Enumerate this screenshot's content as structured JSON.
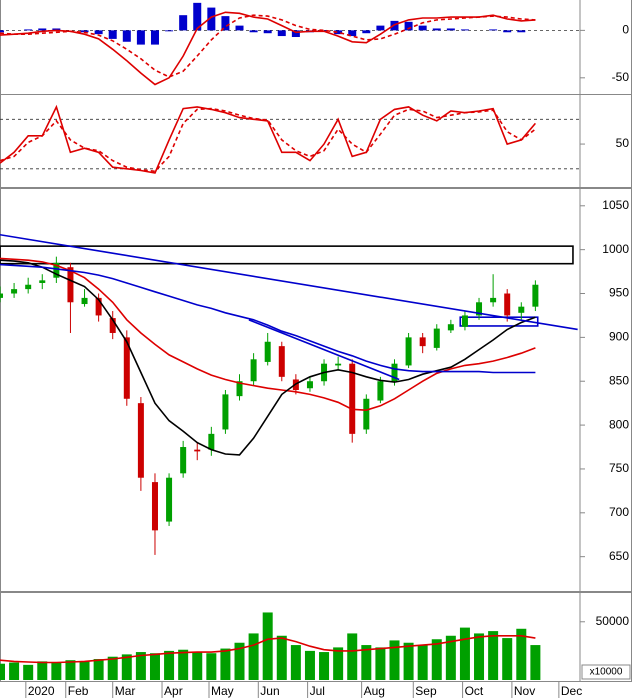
{
  "chart_data": [
    {
      "type": "macd",
      "x": [
        0,
        6,
        12,
        18,
        24,
        30,
        36,
        42,
        48,
        54,
        60,
        66,
        72,
        78,
        84,
        90,
        96,
        102,
        108,
        114,
        120,
        126,
        132,
        138,
        144,
        150,
        156,
        162,
        168,
        174,
        180,
        186,
        192,
        198,
        204,
        210,
        216,
        222,
        228
      ],
      "xlim": [
        0,
        247
      ],
      "ylim": [
        -66,
        32
      ],
      "yticks": [
        0,
        -50
      ],
      "levels": [
        0
      ],
      "histogram": {
        "color": "#0000cc",
        "values": [
          -2,
          0,
          1,
          2,
          2,
          0,
          -2,
          -4,
          -9,
          -12,
          -15,
          -15,
          -1,
          16,
          29,
          24,
          15,
          5,
          -2,
          -3,
          -6,
          -7,
          -2,
          -1,
          -4,
          -6,
          -3,
          5,
          10,
          9,
          5,
          2,
          2,
          1,
          0,
          1,
          -2,
          -2,
          0
        ]
      },
      "series": [
        {
          "color": "#dd0000",
          "dashed": false,
          "values": [
            -5,
            -4,
            -3,
            -1,
            0,
            -1,
            -4,
            -9,
            -20,
            -32,
            -45,
            -57,
            -50,
            -27,
            2,
            14,
            19,
            18,
            14,
            12,
            5,
            -2,
            -1,
            -1,
            -6,
            -12,
            -13,
            -4,
            6,
            11,
            13,
            13,
            14,
            14,
            14,
            16,
            12,
            10,
            11
          ]
        },
        {
          "color": "#dd0000",
          "dashed": true,
          "values": [
            -3,
            -4,
            -4,
            -3,
            -2,
            -1,
            -2,
            -5,
            -11,
            -20,
            -30,
            -42,
            -49,
            -43,
            -27,
            -10,
            4,
            13,
            16,
            15,
            11,
            5,
            1,
            0,
            -2,
            -6,
            -10,
            -9,
            -4,
            2,
            8,
            11,
            12,
            13,
            14,
            15,
            14,
            12,
            11
          ]
        }
      ]
    },
    {
      "type": "line",
      "x": [
        0,
        6,
        12,
        18,
        24,
        30,
        36,
        42,
        48,
        54,
        60,
        66,
        72,
        78,
        84,
        90,
        96,
        102,
        108,
        114,
        120,
        126,
        132,
        138,
        144,
        150,
        156,
        162,
        168,
        174,
        180,
        186,
        192,
        198,
        204,
        210,
        216,
        222,
        228
      ],
      "xlim": [
        0,
        247
      ],
      "ylim": [
        -2,
        107
      ],
      "yticks": [
        50
      ],
      "levels": [
        80,
        20
      ],
      "series": [
        {
          "color": "#dd0000",
          "dashed": false,
          "values": [
            27,
            40,
            60,
            60,
            95,
            40,
            45,
            40,
            22,
            20,
            18,
            15,
            55,
            93,
            95,
            92,
            88,
            82,
            80,
            78,
            40,
            40,
            30,
            50,
            80,
            35,
            40,
            80,
            92,
            95,
            85,
            78,
            90,
            88,
            90,
            93,
            50,
            55,
            75
          ]
        },
        {
          "color": "#dd0000",
          "dashed": true,
          "values": [
            30,
            35,
            52,
            60,
            78,
            55,
            45,
            42,
            30,
            22,
            19,
            17,
            35,
            75,
            92,
            93,
            90,
            85,
            81,
            79,
            55,
            42,
            35,
            42,
            68,
            50,
            40,
            62,
            85,
            92,
            90,
            82,
            85,
            88,
            89,
            91,
            65,
            55,
            68
          ]
        }
      ]
    },
    {
      "type": "candlestick",
      "x": [
        0,
        6,
        12,
        18,
        24,
        30,
        36,
        42,
        48,
        54,
        60,
        66,
        72,
        78,
        84,
        90,
        96,
        102,
        108,
        114,
        120,
        126,
        132,
        138,
        144,
        150,
        156,
        162,
        168,
        174,
        180,
        186,
        192,
        198,
        204,
        210,
        216,
        222,
        228
      ],
      "xlim": [
        0,
        247
      ],
      "ylim": [
        612,
        1068
      ],
      "yticks": [
        650,
        700,
        750,
        800,
        850,
        900,
        950,
        1000,
        1050
      ],
      "up_color": "#00a000",
      "down_color": "#cc0000",
      "open": [
        945,
        950,
        955,
        962,
        968,
        980,
        938,
        945,
        922,
        900,
        825,
        735,
        690,
        745,
        772,
        772,
        795,
        833,
        850,
        872,
        890,
        852,
        842,
        850,
        868,
        870,
        795,
        828,
        850,
        868,
        900,
        888,
        908,
        912,
        925,
        940,
        950,
        928,
        935
      ],
      "high": [
        958,
        962,
        968,
        972,
        992,
        985,
        955,
        950,
        930,
        908,
        832,
        745,
        745,
        782,
        780,
        798,
        840,
        858,
        882,
        905,
        895,
        858,
        855,
        875,
        878,
        875,
        835,
        855,
        875,
        905,
        905,
        915,
        920,
        930,
        945,
        972,
        955,
        940,
        965
      ],
      "low": [
        940,
        945,
        950,
        955,
        962,
        905,
        935,
        918,
        898,
        822,
        725,
        652,
        685,
        740,
        760,
        765,
        790,
        828,
        845,
        868,
        850,
        835,
        838,
        845,
        862,
        780,
        790,
        825,
        845,
        865,
        882,
        885,
        905,
        908,
        920,
        935,
        918,
        920,
        930
      ],
      "close": [
        950,
        955,
        960,
        965,
        985,
        940,
        945,
        925,
        905,
        830,
        740,
        680,
        740,
        775,
        770,
        790,
        835,
        850,
        875,
        895,
        855,
        840,
        850,
        870,
        870,
        790,
        830,
        850,
        870,
        900,
        890,
        910,
        915,
        925,
        940,
        945,
        925,
        935,
        960
      ],
      "series": [
        {
          "color": "#dd0000",
          "dashed": false,
          "values": [
            990,
            989,
            988,
            986,
            982,
            976,
            968,
            955,
            940,
            920,
            905,
            892,
            880,
            872,
            864,
            857,
            852,
            848,
            845,
            842,
            840,
            838,
            835,
            831,
            826,
            818,
            817,
            822,
            830,
            840,
            850,
            859,
            864,
            868,
            870,
            873,
            877,
            882,
            888
          ]
        },
        {
          "color": "#000000",
          "dashed": false,
          "values": [
            988,
            987,
            985,
            980,
            972,
            965,
            958,
            943,
            920,
            895,
            860,
            825,
            805,
            793,
            780,
            772,
            767,
            766,
            785,
            810,
            835,
            847,
            855,
            860,
            863,
            860,
            855,
            851,
            849,
            852,
            858,
            862,
            866,
            875,
            886,
            897,
            909,
            917,
            923
          ]
        },
        {
          "color": "#0000cc",
          "dashed": false,
          "values": [
            983,
            982,
            981,
            980,
            978,
            976,
            974,
            971,
            967,
            962,
            957,
            952,
            947,
            942,
            937,
            933,
            928,
            924,
            920,
            914,
            907,
            902,
            896,
            890,
            884,
            879,
            873,
            868,
            864,
            862,
            861,
            861,
            861,
            861,
            861,
            860,
            860,
            860,
            860
          ]
        }
      ],
      "trendlines": [
        {
          "color": "#0000cc",
          "x": [
            0,
            246
          ],
          "y": [
            1017,
            909
          ]
        },
        {
          "color": "#0000cc",
          "x": [
            106,
            170
          ],
          "y": [
            920,
            852
          ]
        }
      ],
      "boxes": [
        {
          "color": "#000000",
          "x": [
            0,
            244
          ],
          "y": [
            1004,
            984
          ]
        },
        {
          "color": "#0000cc",
          "x": [
            196,
            229
          ],
          "y": [
            923,
            913
          ]
        }
      ]
    },
    {
      "type": "bar",
      "x": [
        0,
        6,
        12,
        18,
        24,
        30,
        36,
        42,
        48,
        54,
        60,
        66,
        72,
        78,
        84,
        90,
        96,
        102,
        108,
        114,
        120,
        126,
        132,
        138,
        144,
        150,
        156,
        162,
        168,
        174,
        180,
        186,
        192,
        198,
        204,
        210,
        216,
        222,
        228
      ],
      "xlim": [
        0,
        247
      ],
      "ylim": [
        0,
        73000
      ],
      "yticks": [
        50000
      ],
      "unit_label": "x10000",
      "color": "#00a000",
      "values": [
        14000,
        15000,
        13000,
        16000,
        15000,
        17000,
        16000,
        18000,
        20000,
        22000,
        24000,
        23000,
        25000,
        26000,
        24000,
        23000,
        27000,
        32000,
        40000,
        58000,
        38000,
        30000,
        25000,
        24000,
        28000,
        40000,
        30000,
        28000,
        34000,
        32000,
        30000,
        35000,
        38000,
        45000,
        40000,
        42000,
        36000,
        44000,
        30000
      ],
      "series": [
        {
          "color": "#dd0000",
          "dashed": false,
          "values": [
            17000,
            16000,
            15500,
            15000,
            15000,
            15500,
            16000,
            17000,
            18000,
            19500,
            21000,
            22000,
            23000,
            23500,
            24000,
            24000,
            25000,
            27000,
            30000,
            35000,
            36000,
            33000,
            29000,
            26000,
            25000,
            25000,
            26000,
            27000,
            28000,
            29000,
            30000,
            31000,
            33000,
            35000,
            37000,
            38000,
            38000,
            38000,
            36000
          ]
        }
      ],
      "xticks": [
        {
          "value": 11,
          "label": "2020"
        },
        {
          "value": 28,
          "label": "Feb"
        },
        {
          "value": 48,
          "label": "Mar"
        },
        {
          "value": 69,
          "label": "Apr"
        },
        {
          "value": 89,
          "label": "May"
        },
        {
          "value": 110,
          "label": "Jun"
        },
        {
          "value": 131,
          "label": "Jul"
        },
        {
          "value": 154,
          "label": "Aug"
        },
        {
          "value": 176,
          "label": "Sep"
        },
        {
          "value": 197,
          "label": "Oct"
        },
        {
          "value": 218,
          "label": "Nov"
        },
        {
          "value": 238,
          "label": "Dec"
        }
      ]
    }
  ]
}
